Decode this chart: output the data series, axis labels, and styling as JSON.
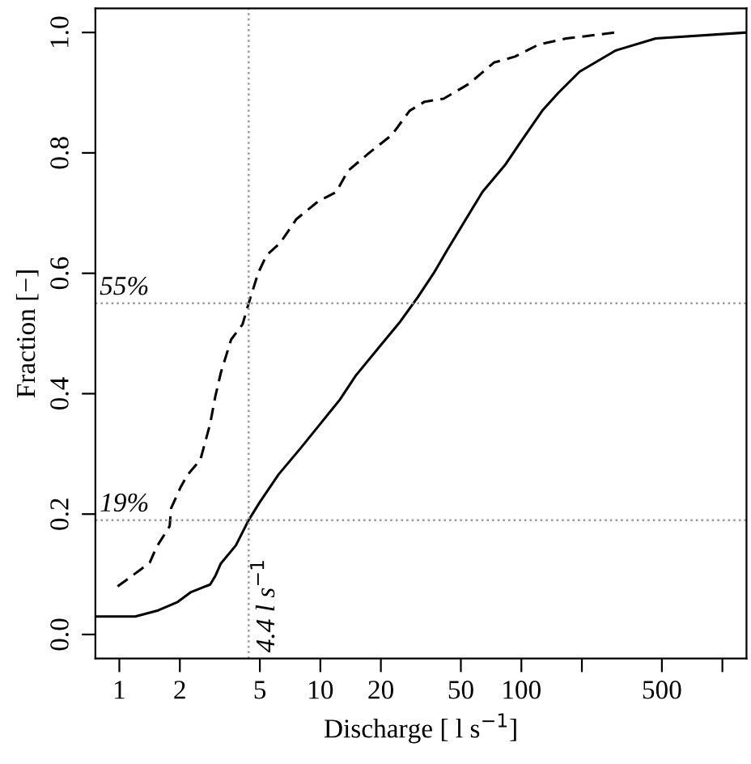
{
  "chart_data": {
    "type": "line",
    "xlabel": "Discharge [ l s$^{−1}$]",
    "ylabel": "Fraction [−]",
    "log": "x",
    "xlim": [
      0.76,
      1318
    ],
    "ylim": [
      -0.04,
      1.04
    ],
    "xticks": [
      1,
      2,
      5,
      10,
      20,
      50,
      100,
      {
        "value": 200,
        "label": null
      },
      500,
      {
        "value": 1000,
        "label": null
      }
    ],
    "yticks": [
      {
        "value": 0,
        "label": "0.0"
      },
      {
        "value": 0.2,
        "label": "0.2"
      },
      {
        "value": 0.4,
        "label": "0.4"
      },
      {
        "value": 0.6,
        "label": "0.6"
      },
      {
        "value": 0.8,
        "label": "0.8"
      },
      {
        "value": 1,
        "label": "1.0"
      }
    ],
    "ref_lines": [
      {
        "axis": "x",
        "value": 4.4,
        "label": "4.4 l s$^{−1}$",
        "color": "#999999",
        "line_style": "dotted"
      },
      {
        "axis": "y",
        "value": 0.55,
        "label": "55%",
        "color": "#999999",
        "line_style": "dotted"
      },
      {
        "axis": "y",
        "value": 0.19,
        "label": "19%",
        "color": "#999999",
        "line_style": "dotted"
      }
    ],
    "series": [
      {
        "color": "#000000",
        "line_style": "solid",
        "x": [
          0.76,
          1.2,
          1.56,
          1.95,
          2.26,
          2.83,
          3.0,
          3.2,
          3.8,
          4.4,
          5.0,
          6.2,
          8.0,
          10,
          12.5,
          15,
          19.9,
          25,
          30.5,
          36.6,
          43,
          53,
          64,
          83,
          100,
          127,
          153,
          195,
          294,
          466,
          1318
        ],
        "values": [
          0.03,
          0.03,
          0.04,
          0.054,
          0.07,
          0.083,
          0.097,
          0.118,
          0.148,
          0.19,
          0.22,
          0.266,
          0.31,
          0.35,
          0.39,
          0.43,
          0.48,
          0.52,
          0.56,
          0.6,
          0.64,
          0.69,
          0.735,
          0.78,
          0.82,
          0.87,
          0.9,
          0.935,
          0.97,
          0.99,
          1.0
        ]
      },
      {
        "color": "#000000",
        "line_style": "dashed",
        "x": [
          0.98,
          1.08,
          1.3,
          1.42,
          1.53,
          1.78,
          1.81,
          2.02,
          2.18,
          2.53,
          2.83,
          3.0,
          3.2,
          3.6,
          4.1,
          4.4,
          4.9,
          5.4,
          6.3,
          7.6,
          9.8,
          12,
          13.7,
          17.5,
          22.7,
          27.8,
          33,
          41,
          55,
          73,
          93,
          122,
          167,
          294
        ],
        "values": [
          0.08,
          0.09,
          0.11,
          0.12,
          0.145,
          0.18,
          0.21,
          0.245,
          0.265,
          0.29,
          0.35,
          0.395,
          0.435,
          0.49,
          0.515,
          0.55,
          0.6,
          0.63,
          0.65,
          0.69,
          0.72,
          0.735,
          0.77,
          0.8,
          0.83,
          0.87,
          0.885,
          0.89,
          0.915,
          0.95,
          0.96,
          0.98,
          0.99,
          1.0
        ]
      }
    ]
  }
}
